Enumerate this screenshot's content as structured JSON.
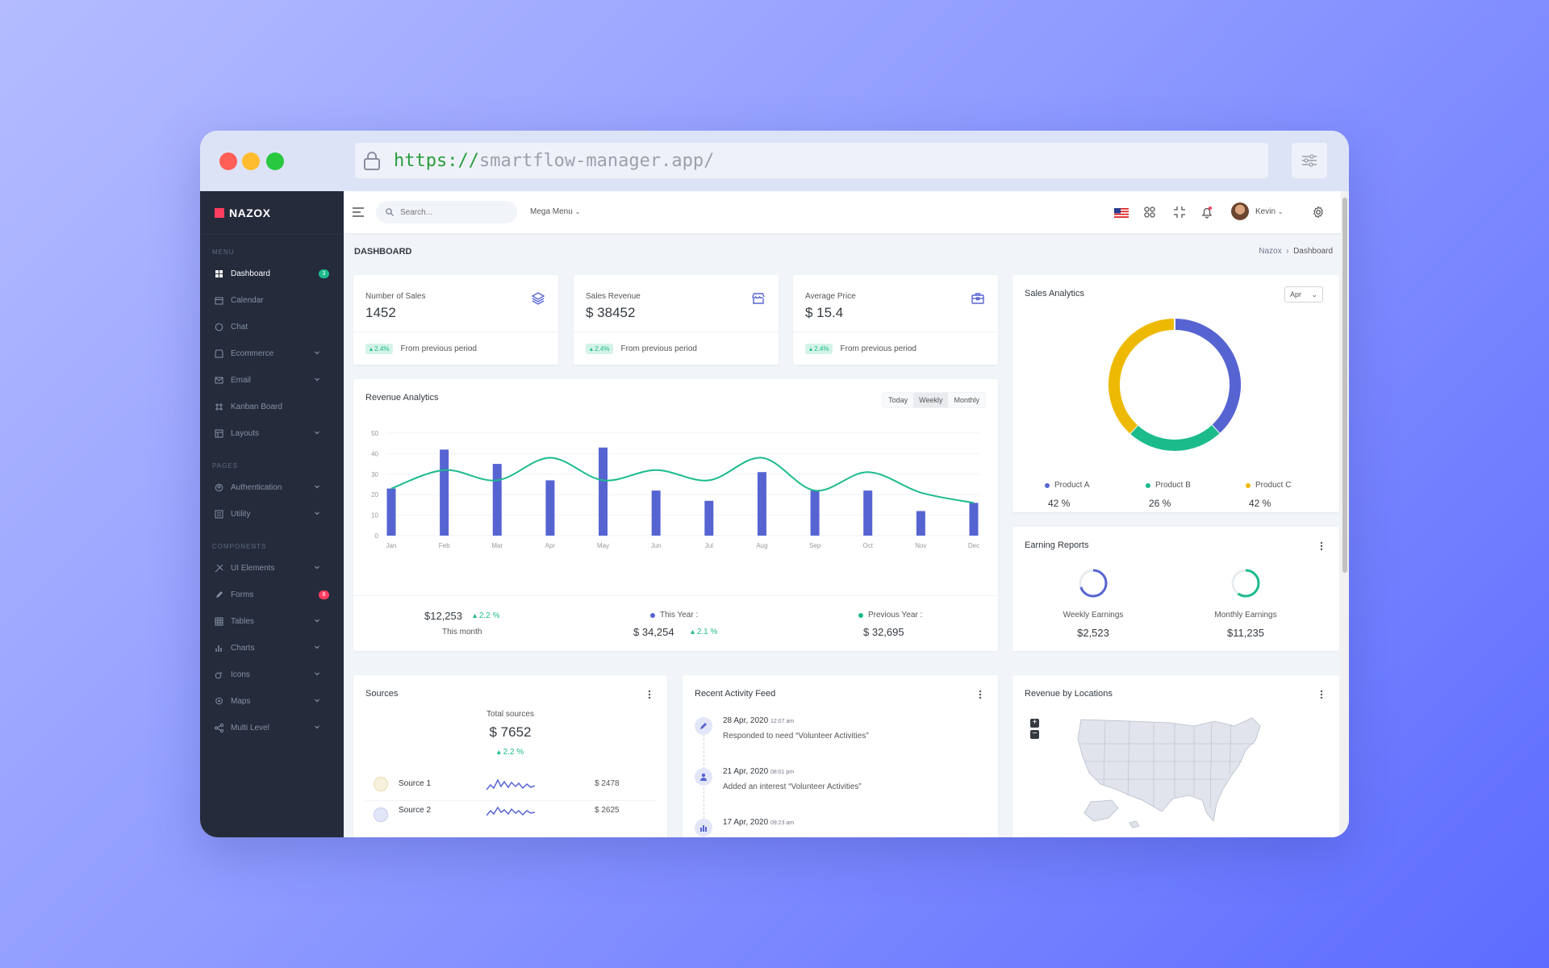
{
  "browser": {
    "url_scheme": "https://",
    "url_rest": "smartflow-manager.app/"
  },
  "sidebar": {
    "brand": "NAZOX",
    "sections": {
      "menu": "MENU",
      "pages": "PAGES",
      "components": "COMPONENTS"
    },
    "items": [
      {
        "label": "Dashboard",
        "badge": "3"
      },
      {
        "label": "Calendar"
      },
      {
        "label": "Chat"
      },
      {
        "label": "Ecommerce"
      },
      {
        "label": "Email"
      },
      {
        "label": "Kanban Board"
      },
      {
        "label": "Layouts"
      },
      {
        "label": "Authentication"
      },
      {
        "label": "Utility"
      },
      {
        "label": "UI Elements"
      },
      {
        "label": "Forms",
        "badge": "8"
      },
      {
        "label": "Tables"
      },
      {
        "label": "Charts"
      },
      {
        "label": "Icons"
      },
      {
        "label": "Maps"
      },
      {
        "label": "Multi Level"
      }
    ]
  },
  "topbar": {
    "search_placeholder": "Search...",
    "mega_menu": "Mega Menu",
    "user": "Kevin"
  },
  "page": {
    "title": "DASHBOARD",
    "crumb_root": "Nazox",
    "crumb_current": "Dashboard"
  },
  "stats": [
    {
      "label": "Number of Sales",
      "value": "1452",
      "change": "2.4%",
      "foot": "From previous period"
    },
    {
      "label": "Sales Revenue",
      "value": "$ 38452",
      "change": "2.4%",
      "foot": "From previous period"
    },
    {
      "label": "Average Price",
      "value": "$ 15.4",
      "change": "2.4%",
      "foot": "From previous period"
    }
  ],
  "revenue": {
    "title": "Revenue Analytics",
    "tabs": [
      "Today",
      "Weekly",
      "Monthly"
    ],
    "this_month_value": "$12,253",
    "this_month_change": "2.2 %",
    "this_month_label": "This month",
    "this_year_label": "This Year :",
    "this_year_value": "$ 34,254",
    "this_year_change": "2.1 %",
    "prev_year_label": "Previous Year :",
    "prev_year_value": "$ 32,695"
  },
  "chart_data": [
    {
      "type": "bar",
      "categories": [
        "Jan",
        "Feb",
        "Mar",
        "Apr",
        "May",
        "Jun",
        "Jul",
        "Aug",
        "Sep",
        "Oct",
        "Nov",
        "Dec"
      ],
      "series": [
        {
          "values": [
            23,
            42,
            35,
            27,
            43,
            22,
            17,
            31,
            22,
            22,
            12,
            16
          ]
        },
        {
          "values": [
            23,
            32,
            27,
            38,
            27,
            32,
            27,
            38,
            22,
            31,
            21,
            16
          ]
        }
      ],
      "yticks": [
        0,
        10,
        20,
        30,
        40,
        50
      ],
      "ylim": [
        0,
        50
      ],
      "colors": [
        "#5664d2",
        "#1cbb8c"
      ]
    },
    {
      "type": "pie",
      "title": "Sales Analytics",
      "categories": [
        "Product A",
        "Product B",
        "Product C"
      ],
      "values": [
        42,
        26,
        42
      ],
      "labels": [
        "42 %",
        "26 %",
        "42 %"
      ],
      "colors": [
        "#5664d2",
        "#1cbb8c",
        "#eeb902"
      ]
    }
  ],
  "sales_analytics": {
    "title": "Sales Analytics",
    "month": "Apr"
  },
  "earning": {
    "title": "Earning Reports",
    "weekly_label": "Weekly Earnings",
    "weekly_value": "$2,523",
    "weekly_progress": 0.7,
    "monthly_label": "Monthly Earnings",
    "monthly_value": "$11,235",
    "monthly_progress": 0.6
  },
  "sources": {
    "title": "Sources",
    "total_label": "Total sources",
    "total_value": "$ 7652",
    "total_change": "2.2 %",
    "rows": [
      {
        "name": "Source 1",
        "value": "$ 2478"
      },
      {
        "name": "Source 2",
        "value": "$ 2625"
      }
    ]
  },
  "activity": {
    "title": "Recent Activity Feed",
    "items": [
      {
        "date": "28 Apr, 2020",
        "time": "12:07 am",
        "text": "Responded to need “Volunteer Activities”"
      },
      {
        "date": "21 Apr, 2020",
        "time": "08:01 pm",
        "text": "Added an interest “Volunteer Activities”"
      },
      {
        "date": "17 Apr, 2020",
        "time": "09:23 am",
        "text": ""
      }
    ]
  },
  "locations": {
    "title": "Revenue by Locations"
  }
}
